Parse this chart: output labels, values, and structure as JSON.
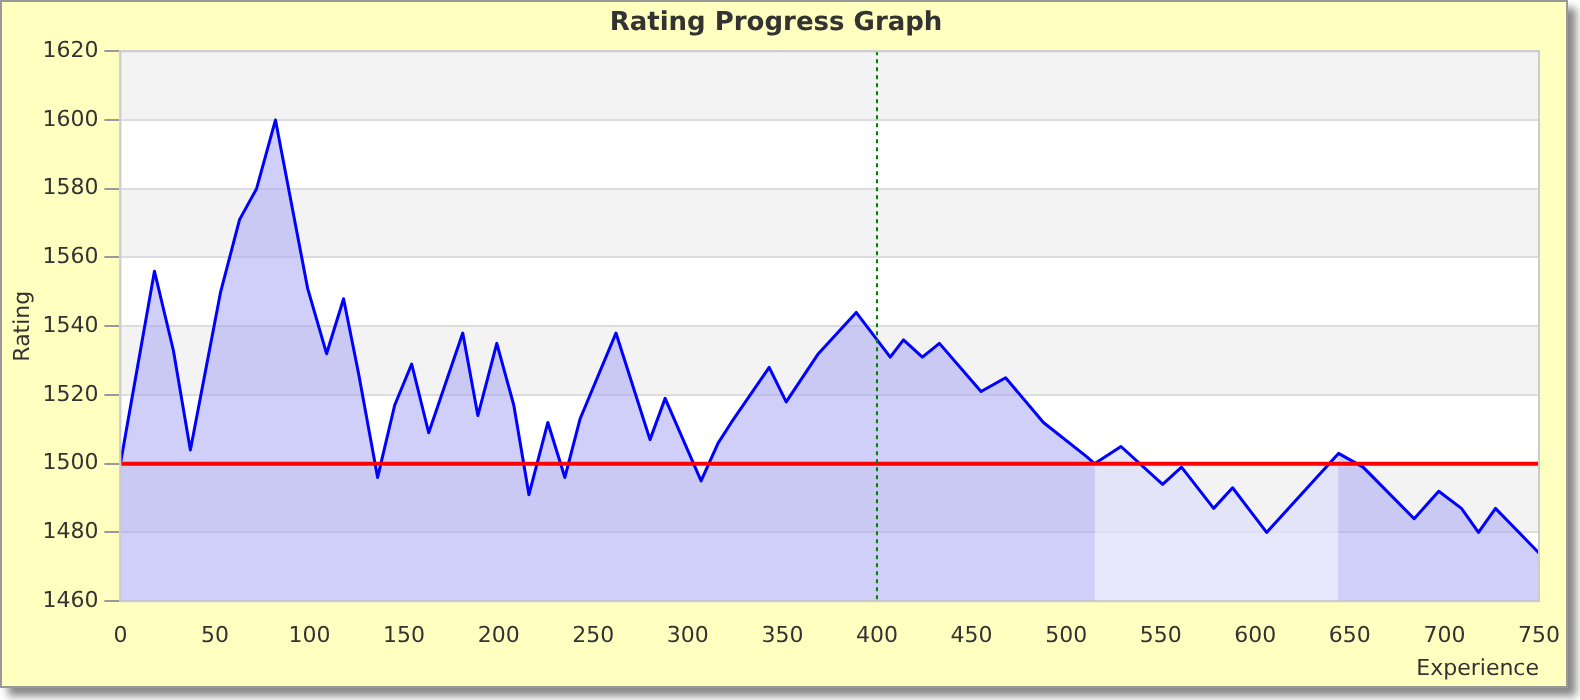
{
  "chart_data": {
    "type": "area",
    "title": "Rating Progress Graph",
    "xlabel": "Experience",
    "ylabel": "Rating",
    "xlim": [
      0,
      750
    ],
    "xticks": [
      0,
      50,
      100,
      150,
      200,
      250,
      300,
      350,
      400,
      450,
      500,
      550,
      600,
      650,
      700,
      750
    ],
    "ylim": [
      1460,
      1620
    ],
    "yticks": [
      1460,
      1480,
      1500,
      1520,
      1540,
      1560,
      1580,
      1600,
      1620
    ],
    "grid": "y",
    "legend": false,
    "marker": "none",
    "line_style": "solid",
    "series": [
      {
        "color": "#0000ff",
        "x": [
          0,
          18,
          28,
          37,
          53,
          63,
          72,
          82,
          99,
          109,
          118,
          126,
          136,
          145,
          154,
          163,
          181,
          189,
          199,
          208,
          216,
          226,
          235,
          243,
          262,
          280,
          288,
          307,
          316,
          323,
          343,
          352,
          369,
          389,
          407,
          414,
          424,
          433,
          455,
          468,
          488,
          511,
          515,
          529,
          551,
          561,
          578,
          588,
          606,
          644,
          657,
          684,
          697,
          709,
          718,
          727,
          750
        ],
        "values": [
          1500,
          1556,
          1533,
          1504,
          1550,
          1571,
          1580,
          1600,
          1551,
          1532,
          1548,
          1526,
          1496,
          1517,
          1529,
          1509,
          1538,
          1514,
          1535,
          1517,
          1491,
          1512,
          1496,
          1513,
          1538,
          1507,
          1519,
          1495,
          1506,
          1512,
          1528,
          1518,
          1532,
          1544,
          1531,
          1536,
          1531,
          1535,
          1521,
          1525,
          1512,
          1502,
          1500,
          1505,
          1494,
          1499,
          1487,
          1493,
          1480,
          1503,
          1499,
          1484,
          1492,
          1487,
          1480,
          1487,
          1474
        ]
      }
    ],
    "ref_lines": [
      {
        "axis": "y",
        "value": 1500,
        "color": "#ff0000",
        "line_style": "solid"
      },
      {
        "axis": "x",
        "value": 400,
        "color": "#008000",
        "line_style": "dotted"
      }
    ],
    "bands": [
      {
        "axis": "x",
        "from": 515,
        "to": 644,
        "color": "#ffffff"
      }
    ]
  }
}
